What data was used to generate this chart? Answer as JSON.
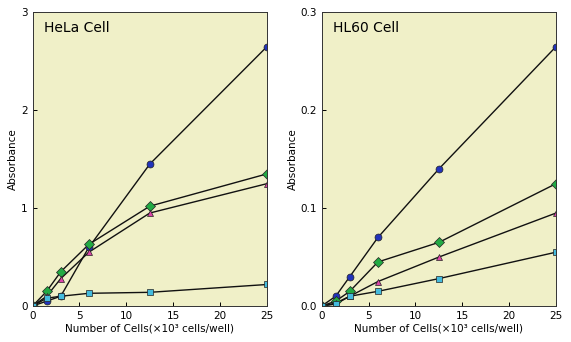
{
  "background_color": "#f0f0c8",
  "fig_bg": "#ffffff",
  "x_values": [
    0,
    1.5,
    3,
    6,
    12.5,
    25
  ],
  "hela": {
    "title": "HeLa Cell",
    "ylabel": "Absorbance",
    "xlabel": "Number of Cells(×10³ cells/well)",
    "ylim": [
      0,
      3
    ],
    "yticks": [
      0,
      1,
      2,
      3
    ],
    "xlim": [
      0,
      25
    ],
    "xticks": [
      0,
      5,
      10,
      15,
      20,
      25
    ],
    "series": [
      {
        "color": "#2233bb",
        "marker": "o",
        "y": [
          0,
          0.05,
          0.1,
          0.6,
          1.45,
          2.65
        ]
      },
      {
        "color": "#22aa44",
        "marker": "D",
        "y": [
          0,
          0.15,
          0.35,
          0.63,
          1.02,
          1.35
        ]
      },
      {
        "color": "#dd44aa",
        "marker": "^",
        "y": [
          0,
          0.1,
          0.28,
          0.55,
          0.95,
          1.25
        ]
      },
      {
        "color": "#44bbdd",
        "marker": "s",
        "y": [
          0,
          0.08,
          0.1,
          0.13,
          0.14,
          0.22
        ]
      }
    ]
  },
  "hl60": {
    "title": "HL60 Cell",
    "ylabel": "Absorbance",
    "xlabel": "Number of Cells(×10³ cells/well)",
    "ylim": [
      0,
      0.3
    ],
    "yticks": [
      0,
      0.1,
      0.2,
      0.3
    ],
    "xlim": [
      0,
      25
    ],
    "xticks": [
      0,
      5,
      10,
      15,
      20,
      25
    ],
    "series": [
      {
        "color": "#2233bb",
        "marker": "o",
        "y": [
          0,
          0.01,
          0.03,
          0.07,
          0.14,
          0.265
        ]
      },
      {
        "color": "#22aa44",
        "marker": "D",
        "y": [
          0,
          0.005,
          0.015,
          0.045,
          0.065,
          0.125
        ]
      },
      {
        "color": "#dd44aa",
        "marker": "^",
        "y": [
          0,
          0.003,
          0.01,
          0.025,
          0.05,
          0.095
        ]
      },
      {
        "color": "#44bbdd",
        "marker": "s",
        "y": [
          0,
          0.002,
          0.01,
          0.015,
          0.028,
          0.055
        ]
      }
    ]
  },
  "line_color": "#111111",
  "marker_size": 5,
  "line_width": 1.0,
  "title_fontsize": 10,
  "label_fontsize": 7.5,
  "tick_fontsize": 7.5
}
